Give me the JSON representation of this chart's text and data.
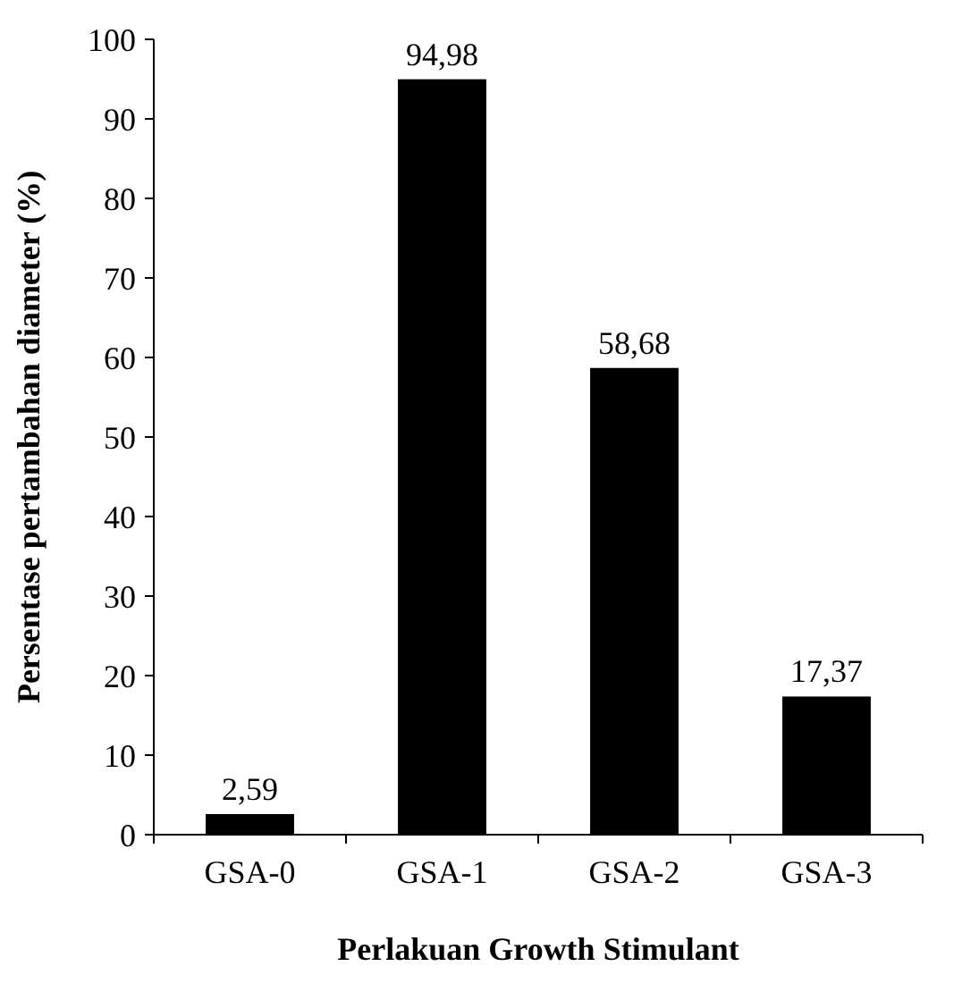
{
  "chart_data": {
    "type": "bar",
    "xlabel": "Perlakuan Growth Stimulant",
    "ylabel": "Persentase pertambahan diameter (%)",
    "categories": [
      "GSA-0",
      "GSA-1",
      "GSA-2",
      "GSA-3"
    ],
    "values": [
      2.59,
      94.98,
      58.68,
      17.37
    ],
    "value_labels": [
      "2,59",
      "94,98",
      "58,68",
      "17,37"
    ],
    "color": "#000000",
    "ylim": [
      0,
      100
    ],
    "yticks": [
      0,
      10,
      20,
      30,
      40,
      50,
      60,
      70,
      80,
      90,
      100
    ],
    "grid": false
  }
}
